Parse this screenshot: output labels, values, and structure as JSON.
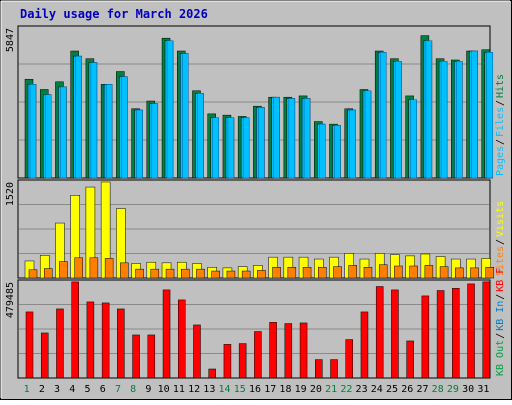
{
  "title": "Daily usage for March 2026",
  "colors": {
    "frame_bg": "#c0c0c0",
    "plot_bg": "#c0c0c0",
    "title": "#0000c0",
    "gridline": "#8a8a8a",
    "hits": "#008040",
    "files": "#00c0ff",
    "pages": "#00c0ff",
    "visits": "#ffff00",
    "sites": "#ff8000",
    "kb": "#ff0000",
    "kb_in": "#0080c0",
    "kb_out": "#00a040",
    "day_black": "#000000",
    "day_weekend": "#008040"
  },
  "chart_data": [
    {
      "type": "bar",
      "panel": "hits-files-pages",
      "title": "Daily usage for March 2026",
      "ymax_label": "5847",
      "ylim": [
        0,
        5847
      ],
      "categories": [
        "1",
        "2",
        "3",
        "4",
        "5",
        "6",
        "7",
        "8",
        "9",
        "10",
        "11",
        "12",
        "13",
        "14",
        "15",
        "16",
        "17",
        "18",
        "19",
        "20",
        "21",
        "22",
        "23",
        "24",
        "25",
        "26",
        "27",
        "28",
        "29",
        "30",
        "31"
      ],
      "legend": [
        "Hits",
        "Files",
        "Pages"
      ],
      "series": [
        {
          "name": "Hits",
          "values": [
            3850,
            3450,
            3750,
            4950,
            4650,
            3650,
            4150,
            2700,
            3000,
            5450,
            4950,
            3400,
            2500,
            2450,
            2400,
            2800,
            3150,
            3150,
            3200,
            2200,
            2100,
            2700,
            3450,
            4950,
            4650,
            3200,
            5550,
            4650,
            4600,
            4950,
            5000
          ]
        },
        {
          "name": "Files",
          "values": [
            3650,
            3250,
            3550,
            4750,
            4500,
            3650,
            3950,
            2650,
            2900,
            5350,
            4850,
            3300,
            2350,
            2350,
            2350,
            2750,
            3150,
            3100,
            3100,
            2100,
            2050,
            2650,
            3400,
            4900,
            4550,
            3050,
            5350,
            4550,
            4550,
            4950,
            4900
          ]
        },
        {
          "name": "Pages",
          "values": [
            3650,
            3250,
            3550,
            4750,
            4500,
            3650,
            3950,
            2650,
            2900,
            5350,
            4850,
            3300,
            2350,
            2350,
            2350,
            2750,
            3150,
            3100,
            3100,
            2100,
            2050,
            2650,
            3400,
            4900,
            4550,
            3050,
            5350,
            4550,
            4550,
            4950,
            4900
          ]
        }
      ],
      "weekend_days": [
        "1",
        "7",
        "8",
        "14",
        "15",
        "21",
        "22",
        "28",
        "29"
      ]
    },
    {
      "type": "bar",
      "panel": "visits-sites",
      "ymax_label": "1520",
      "ylim": [
        0,
        1520
      ],
      "categories": [
        "1",
        "2",
        "3",
        "4",
        "5",
        "6",
        "7",
        "8",
        "9",
        "10",
        "11",
        "12",
        "13",
        "14",
        "15",
        "16",
        "17",
        "18",
        "19",
        "20",
        "21",
        "22",
        "23",
        "24",
        "25",
        "26",
        "27",
        "28",
        "29",
        "30",
        "31"
      ],
      "legend": [
        "Visits",
        "Sites"
      ],
      "series": [
        {
          "name": "Visits",
          "values": [
            270,
            360,
            870,
            1310,
            1440,
            1520,
            1100,
            230,
            250,
            240,
            250,
            230,
            170,
            160,
            180,
            200,
            330,
            330,
            330,
            300,
            330,
            390,
            300,
            390,
            370,
            350,
            380,
            340,
            300,
            300,
            310
          ]
        },
        {
          "name": "Sites",
          "values": [
            130,
            150,
            260,
            320,
            320,
            310,
            240,
            140,
            140,
            140,
            140,
            140,
            110,
            110,
            110,
            120,
            170,
            170,
            170,
            170,
            180,
            200,
            170,
            210,
            190,
            190,
            200,
            180,
            160,
            160,
            170
          ]
        }
      ]
    },
    {
      "type": "bar",
      "panel": "kbytes",
      "ymax_label": "479485",
      "ylim": [
        0,
        479485
      ],
      "categories": [
        "1",
        "2",
        "3",
        "4",
        "5",
        "6",
        "7",
        "8",
        "9",
        "10",
        "11",
        "12",
        "13",
        "14",
        "15",
        "16",
        "17",
        "18",
        "19",
        "20",
        "21",
        "22",
        "23",
        "24",
        "25",
        "26",
        "27",
        "28",
        "29",
        "30",
        "31"
      ],
      "legend": [
        "KB F",
        "KB In",
        "KB Out"
      ],
      "series": [
        {
          "name": "KB F",
          "values": [
            330000,
            225000,
            345000,
            480000,
            380000,
            375000,
            345000,
            215000,
            215000,
            440000,
            390000,
            265000,
            45000,
            168000,
            172000,
            232000,
            278000,
            272000,
            275000,
            92000,
            92000,
            192000,
            330000,
            457000,
            440000,
            185000,
            410000,
            437000,
            448000,
            470000,
            480000
          ]
        }
      ]
    }
  ]
}
